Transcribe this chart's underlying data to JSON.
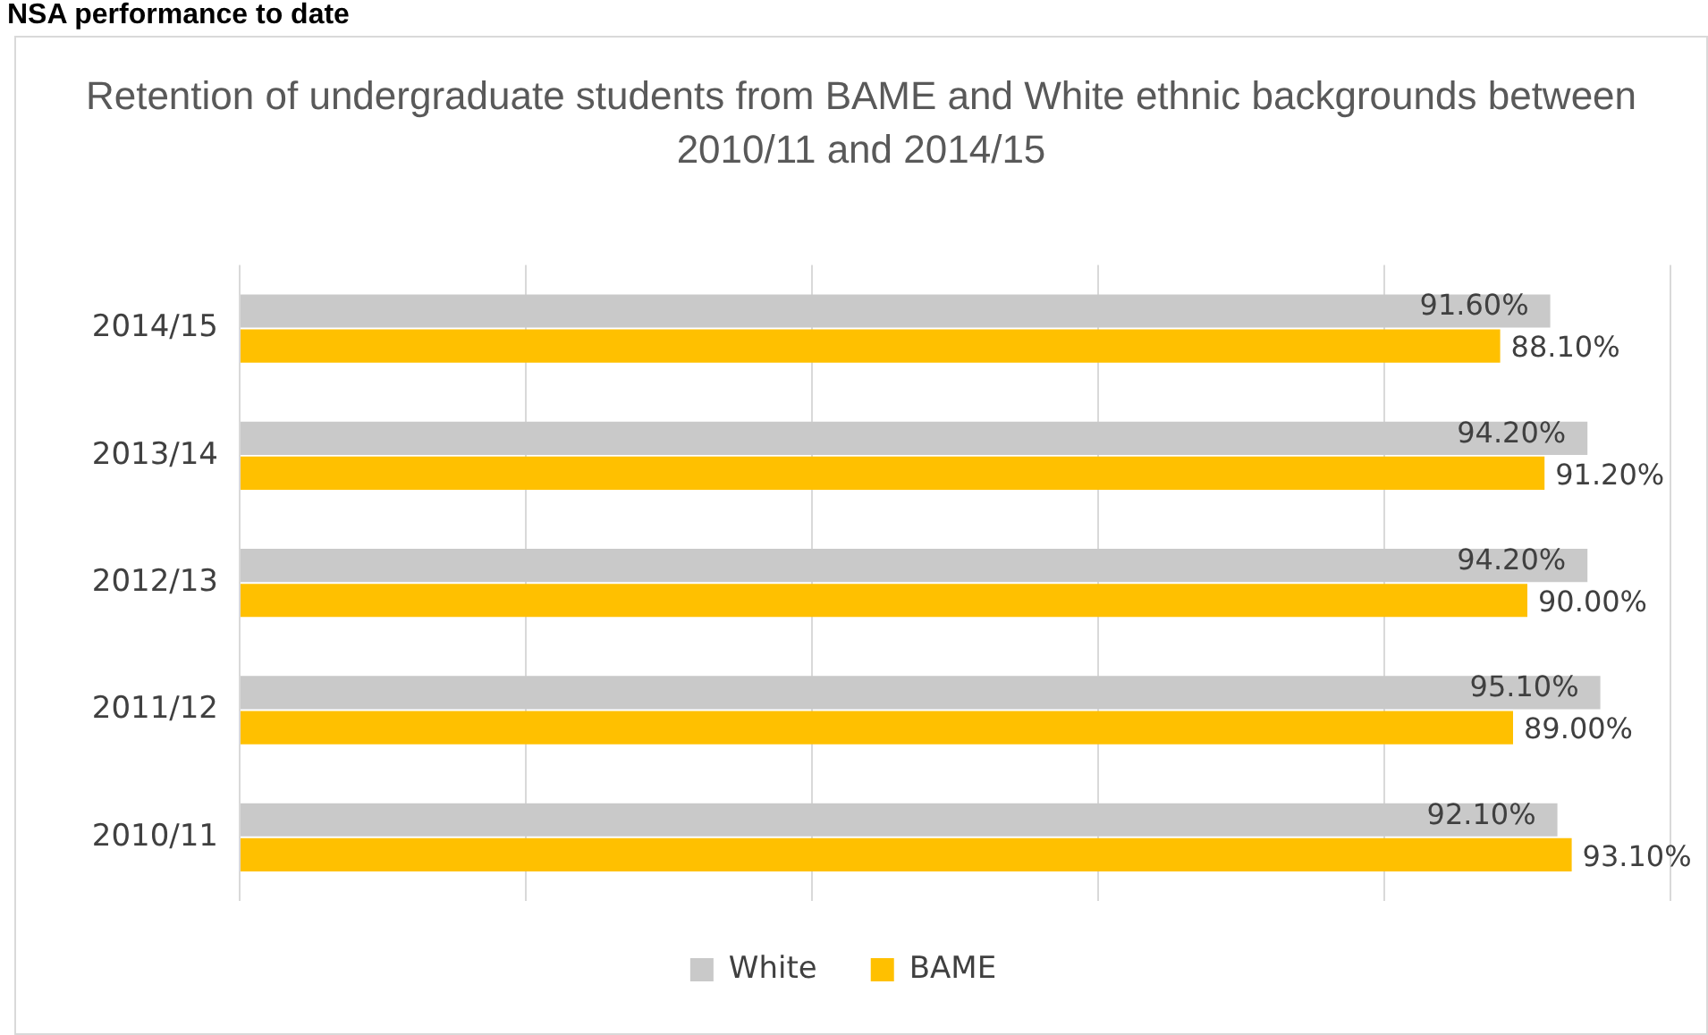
{
  "chart_data": {
    "type": "bar",
    "orientation": "horizontal",
    "title": "Retention of undergraduate students from BAME and White ethnic backgrounds between 2010/11 and 2014/15",
    "annotations": [
      "NSA performance to date"
    ],
    "categories": [
      "2014/15",
      "2013/14",
      "2012/13",
      "2011/12",
      "2010/11"
    ],
    "series": [
      {
        "name": "White",
        "color": "#c9c9c9",
        "values": [
          91.6,
          94.2,
          94.2,
          95.1,
          92.1
        ],
        "value_labels": [
          "91.60%",
          "94.20%",
          "94.20%",
          "95.10%",
          "92.10%"
        ]
      },
      {
        "name": "BAME",
        "color": "#ffc000",
        "values": [
          88.1,
          91.2,
          90.0,
          89.0,
          93.1
        ],
        "value_labels": [
          "88.10%",
          "91.20%",
          "90.00%",
          "89.00%",
          "93.10%"
        ]
      }
    ],
    "xlim": [
      0,
      100
    ],
    "xticks": [
      {
        "value": 0,
        "label": null
      },
      {
        "value": 20,
        "label": null
      },
      {
        "value": 40,
        "label": null
      },
      {
        "value": 60,
        "label": null
      },
      {
        "value": 80,
        "label": null
      },
      {
        "value": 100,
        "label": null
      }
    ],
    "grid": "x",
    "tick_labels": "y",
    "legend": "bottom"
  }
}
